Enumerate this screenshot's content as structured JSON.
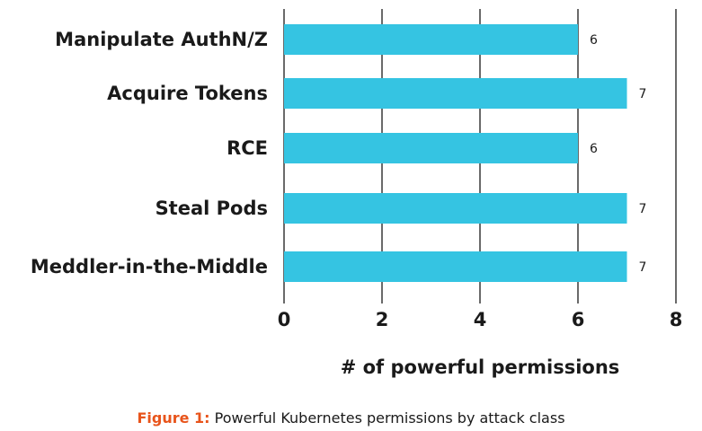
{
  "chart_data": {
    "type": "bar",
    "orientation": "horizontal",
    "categories": [
      "Manipulate AuthN/Z",
      "Acquire Tokens",
      "RCE",
      "Steal Pods",
      "Meddler-in-the-Middle"
    ],
    "values": [
      6,
      7,
      6,
      7,
      7
    ],
    "xlabel": "# of powerful permissions",
    "ylabel": "",
    "xlim": [
      0,
      8
    ],
    "xticks": [
      "0",
      "2",
      "4",
      "6",
      "8"
    ],
    "grid": true,
    "legend": "none",
    "bar_color": "#35c4e2",
    "gridline_color": "#1a1a1a"
  },
  "caption": {
    "prefix": "Figure 1:",
    "text": "Powerful Kubernetes permissions by attack class",
    "prefix_color": "#e8541b"
  }
}
